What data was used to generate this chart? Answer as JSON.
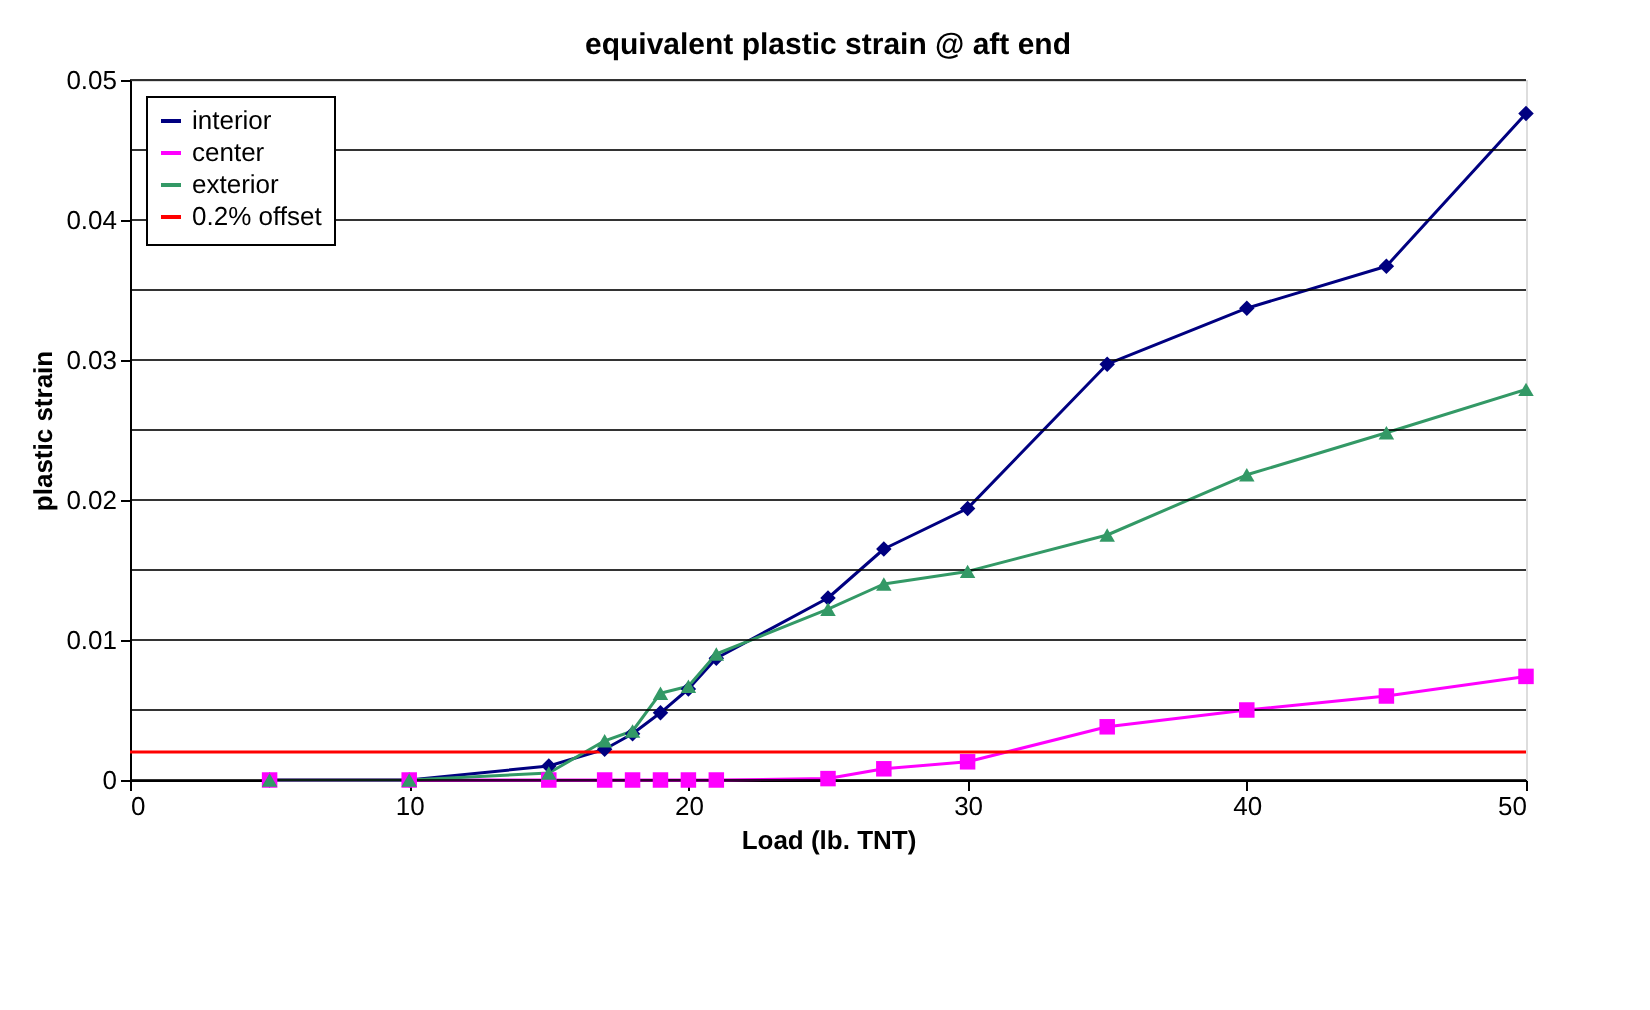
{
  "chart_data": {
    "type": "line",
    "title": "equivalent plastic strain @ aft end",
    "xlabel": "Load (lb. TNT)",
    "ylabel": "plastic strain",
    "x": [
      5,
      10,
      15,
      17,
      18,
      19,
      20,
      21,
      25,
      27,
      30,
      35,
      40,
      45,
      50
    ],
    "series": [
      {
        "name": "interior",
        "color": "#000080",
        "marker": "diamond",
        "values": [
          0,
          0,
          0.001,
          0.0022,
          0.0033,
          0.0048,
          0.0065,
          0.0087,
          0.013,
          0.0165,
          0.0194,
          0.0297,
          0.0337,
          0.0367,
          0.0476
        ]
      },
      {
        "name": "center",
        "color": "#ff00ff",
        "marker": "square",
        "values": [
          0,
          0,
          0,
          0,
          0,
          0,
          0,
          0,
          0.0001,
          0.0008,
          0.0013,
          0.0038,
          0.005,
          0.006,
          0.0074
        ]
      },
      {
        "name": "exterior",
        "color": "#339966",
        "marker": "triangle",
        "values": [
          0,
          0,
          0.0005,
          0.0028,
          0.0035,
          0.0062,
          0.0067,
          0.009,
          0.0122,
          0.014,
          0.0149,
          0.0175,
          0.0218,
          0.0248,
          0.0279
        ]
      },
      {
        "name": "0.2% offset",
        "color": "#ff0000",
        "marker": "none",
        "x": [
          0,
          50
        ],
        "values": [
          0.002,
          0.002
        ]
      }
    ],
    "xlim": [
      0,
      50
    ],
    "xticks": [
      0,
      10,
      20,
      30,
      40,
      50
    ],
    "ylim": [
      0,
      0.05
    ],
    "yticks": [
      0,
      {
        "value": 0.005,
        "label": null
      },
      0.01,
      {
        "value": 0.015,
        "label": null
      },
      0.02,
      {
        "value": 0.025,
        "label": null
      },
      0.03,
      {
        "value": 0.035,
        "label": null
      },
      0.04,
      {
        "value": 0.045,
        "label": null
      },
      0.05
    ],
    "grid": "y",
    "legend": "top left"
  }
}
